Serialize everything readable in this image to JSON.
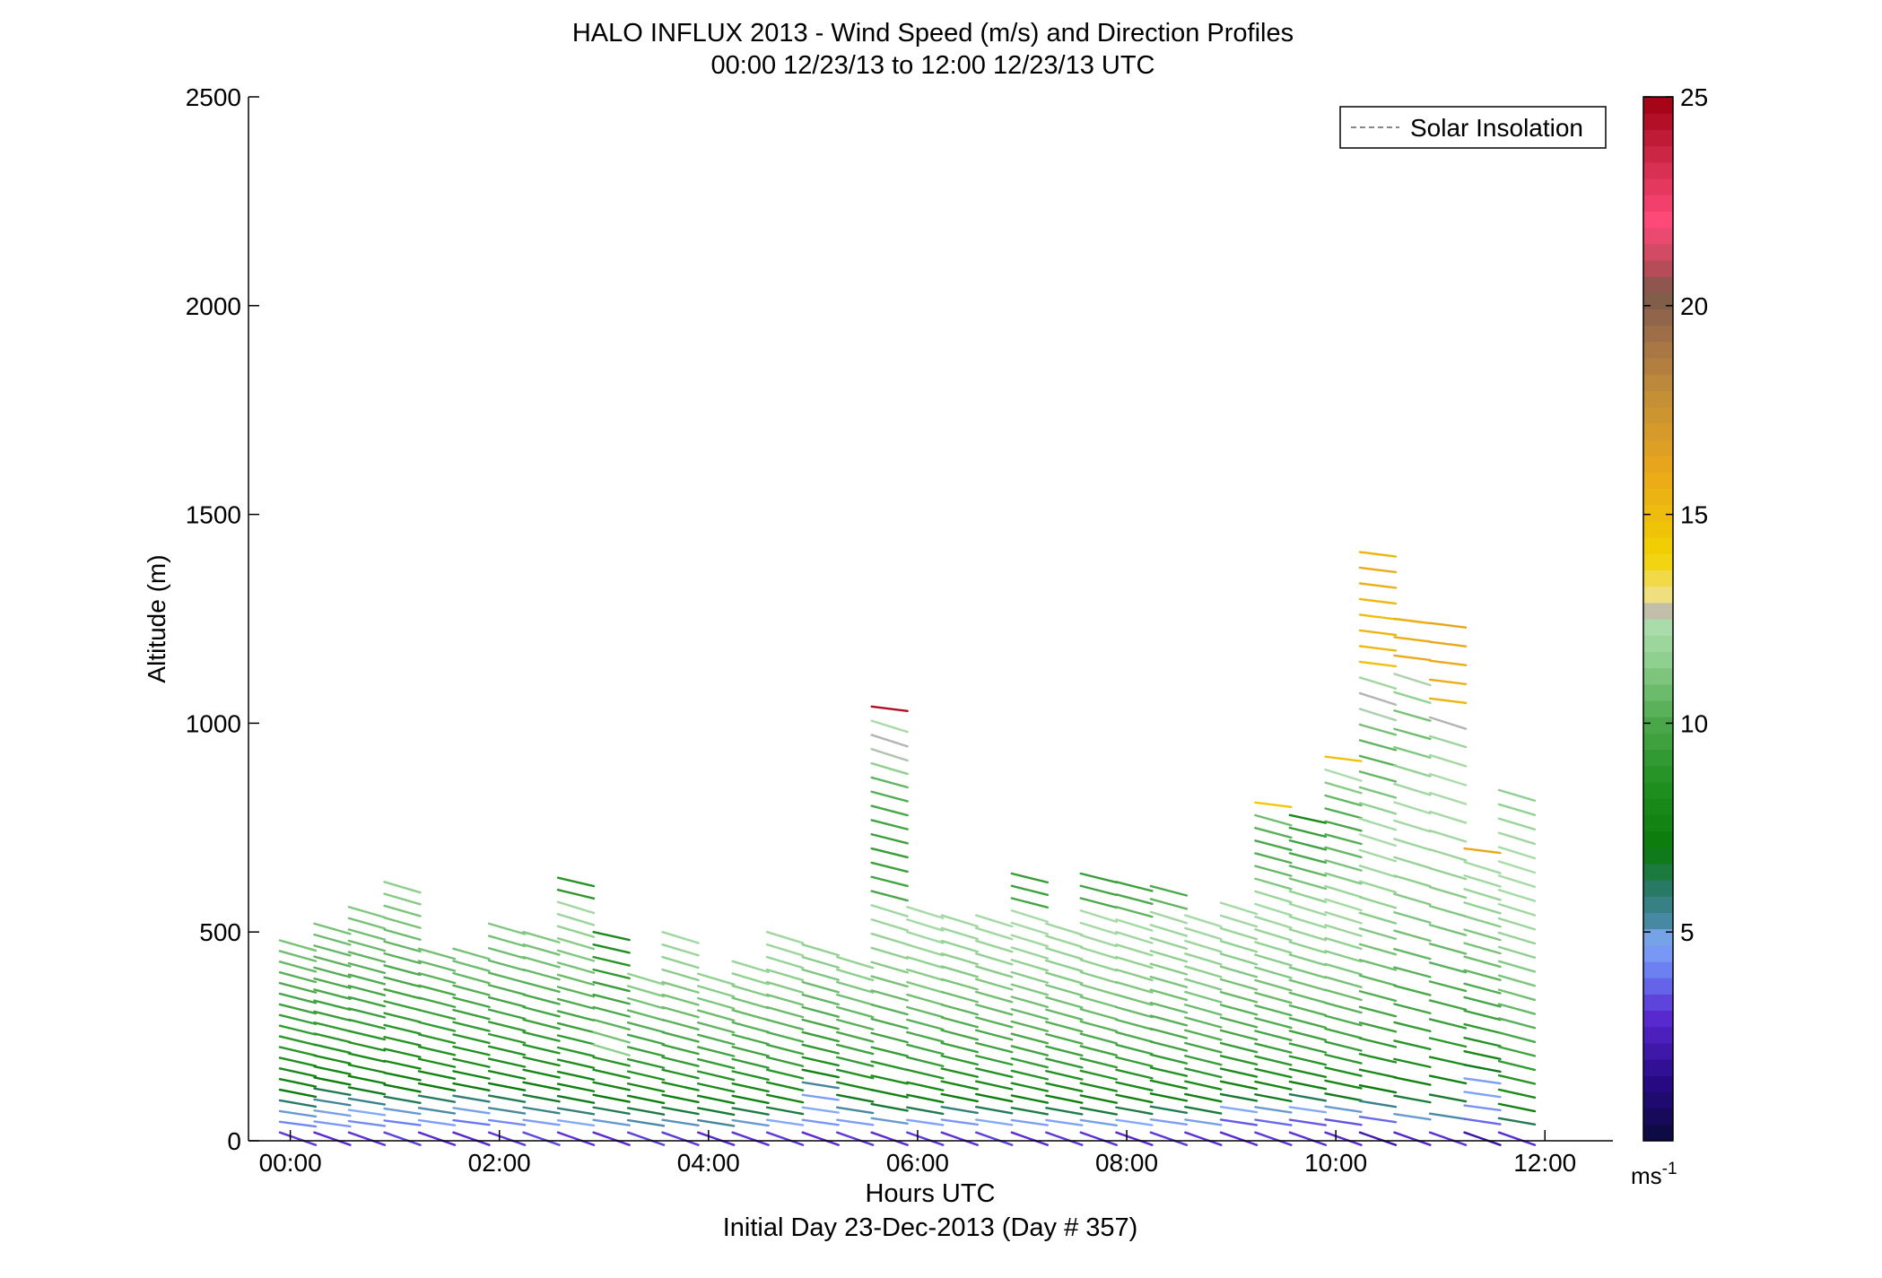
{
  "chart_data": {
    "type": "wind-barb-profile",
    "title": "HALO INFLUX 2013 - Wind Speed (m/s) and Direction Profiles",
    "subtitle": "00:00 12/23/13 to 12:00 12/23/13  UTC",
    "xlabel": "Hours UTC",
    "xlabel2": "Initial Day 23-Dec-2013 (Day # 357)",
    "ylabel": "Altitude (m)",
    "xlim": [
      -0.4,
      12.65
    ],
    "ylim": [
      0,
      2500
    ],
    "x_ticks": [
      {
        "value": 0,
        "label": "00:00"
      },
      {
        "value": 2,
        "label": "02:00"
      },
      {
        "value": 4,
        "label": "04:00"
      },
      {
        "value": 6,
        "label": "06:00"
      },
      {
        "value": 8,
        "label": "08:00"
      },
      {
        "value": 10,
        "label": "10:00"
      },
      {
        "value": 12,
        "label": "12:00"
      }
    ],
    "y_ticks": [
      {
        "value": 0,
        "label": "0"
      },
      {
        "value": 500,
        "label": "500"
      },
      {
        "value": 1000,
        "label": "1000"
      },
      {
        "value": 1500,
        "label": "1500"
      },
      {
        "value": 2000,
        "label": "2000"
      },
      {
        "value": 2500,
        "label": "2500"
      }
    ],
    "legend": {
      "label": "Solar Insolation",
      "style": "dashed",
      "color": "#888888",
      "placement": "top-right"
    },
    "colorbar": {
      "min": 0,
      "max": 25,
      "ticks": [
        {
          "value": 5,
          "label": "5"
        },
        {
          "value": 10,
          "label": "10"
        },
        {
          "value": 15,
          "label": "15"
        },
        {
          "value": 20,
          "label": "20"
        },
        {
          "value": 25,
          "label": "25"
        }
      ],
      "unit_base": "ms",
      "unit_exp": "-1",
      "stops": [
        {
          "v": 0,
          "c": "#0a0a3c"
        },
        {
          "v": 1.5,
          "c": "#2a0a8a"
        },
        {
          "v": 3,
          "c": "#5a2ad2"
        },
        {
          "v": 4,
          "c": "#6a7af0"
        },
        {
          "v": 4.8,
          "c": "#82aaf8"
        },
        {
          "v": 5.2,
          "c": "#4a8aa8"
        },
        {
          "v": 6,
          "c": "#2a7a6a"
        },
        {
          "v": 7,
          "c": "#0a7a0a"
        },
        {
          "v": 8.5,
          "c": "#1f8f1f"
        },
        {
          "v": 10,
          "c": "#4aa84a"
        },
        {
          "v": 11.5,
          "c": "#8ecf8e"
        },
        {
          "v": 12.3,
          "c": "#aadcaa"
        },
        {
          "v": 12.6,
          "c": "#b4b4b4"
        },
        {
          "v": 13,
          "c": "#f0e08a"
        },
        {
          "v": 14,
          "c": "#f2d200"
        },
        {
          "v": 16,
          "c": "#eaa81a"
        },
        {
          "v": 18,
          "c": "#c08c3a"
        },
        {
          "v": 19.5,
          "c": "#9a6a4a"
        },
        {
          "v": 20.3,
          "c": "#7a5a4a"
        },
        {
          "v": 21,
          "c": "#c04a5a"
        },
        {
          "v": 22,
          "c": "#ff4a7a"
        },
        {
          "v": 23.5,
          "c": "#d02a4a"
        },
        {
          "v": 25,
          "c": "#a00010"
        }
      ]
    },
    "profile_times": [
      -0.1,
      0.23,
      0.56,
      0.9,
      1.23,
      1.56,
      1.9,
      2.23,
      2.56,
      2.9,
      3.23,
      3.56,
      3.9,
      4.23,
      4.56,
      4.9,
      5.23,
      5.56,
      5.9,
      6.23,
      6.56,
      6.9,
      7.23,
      7.56,
      7.9,
      8.23,
      8.56,
      8.9,
      9.23,
      9.56,
      9.9,
      10.23,
      10.56,
      10.9,
      11.23,
      11.56
    ],
    "profiles": [
      {
        "t": -0.1,
        "top": 480,
        "spd": [
          3.2,
          4.2,
          5,
          6,
          7,
          7.6,
          8.1,
          8.5,
          8.8,
          9,
          9.2,
          9.4,
          9.6,
          9.8,
          10,
          10.3,
          10.6,
          10.8,
          11
        ]
      },
      {
        "t": 0.23,
        "top": 520,
        "spd": [
          3,
          4.5,
          4.9,
          5.4,
          6.3,
          7.2,
          7.8,
          8.2,
          8.6,
          9,
          9.2,
          9.4,
          9.6,
          9.9,
          10,
          10.2,
          10.4,
          10.6,
          10.8,
          11
        ]
      },
      {
        "t": 0.56,
        "top": 560,
        "spd": [
          3.1,
          4.3,
          4.8,
          5.6,
          6.8,
          7.4,
          7.9,
          8.3,
          8.6,
          8.9,
          9.2,
          9.4,
          9.7,
          9.9,
          10.1,
          10.3,
          10.5,
          10.7,
          10.9,
          11,
          11.2
        ]
      },
      {
        "t": 0.9,
        "top": 620,
        "spd": [
          3.3,
          4.1,
          5,
          6.2,
          7,
          7.5,
          8,
          8.4,
          8.7,
          9,
          9.3,
          9.5,
          9.7,
          9.9,
          10.1,
          10.4,
          10.6,
          10.8,
          11,
          11.1,
          11.3,
          11.5
        ]
      },
      {
        "t": 1.23,
        "top": 460,
        "spd": [
          3,
          4.6,
          5.2,
          6.1,
          7.1,
          7.7,
          8.2,
          8.6,
          9,
          9.2,
          9.5,
          9.8,
          10,
          10.4,
          10.6,
          10.9
        ]
      },
      {
        "t": 1.56,
        "top": 460,
        "spd": [
          2.9,
          4,
          4.9,
          5.8,
          6.9,
          7.6,
          8.2,
          8.5,
          8.9,
          9.2,
          9.5,
          9.8,
          10.2,
          10.6,
          10.8,
          11
        ]
      },
      {
        "t": 1.9,
        "top": 520,
        "spd": [
          3.2,
          4.3,
          5.3,
          6.2,
          7,
          7.8,
          8.3,
          8.7,
          9,
          9.3,
          9.6,
          9.8,
          10.1,
          10.4,
          10.6,
          10.8,
          11,
          11.2
        ]
      },
      {
        "t": 2.23,
        "top": 500,
        "spd": [
          3.4,
          4.6,
          5.6,
          6.6,
          7.2,
          7.9,
          8.4,
          8.8,
          9.2,
          9.5,
          9.8,
          10,
          10.3,
          10.6,
          10.9,
          11,
          11.2
        ]
      },
      {
        "t": 2.56,
        "top": 630,
        "spd": [
          3.1,
          4.8,
          5.8,
          6.8,
          7.4,
          8,
          8.5,
          8.9,
          9.2,
          9.5,
          9.8,
          10.1,
          10.4,
          10.7,
          11,
          11.2,
          11.4,
          11.6,
          11.8,
          12,
          9,
          8.8
        ]
      },
      {
        "t": 2.9,
        "top": 500,
        "spd": [
          3,
          5,
          6.2,
          7,
          7.8,
          8.4,
          8.8,
          11.5,
          11,
          10.4,
          10,
          9.7,
          9.4,
          9.1,
          8.8,
          8.5,
          8.2
        ]
      },
      {
        "t": 3.23,
        "top": 400,
        "spd": [
          3.3,
          5.2,
          6.4,
          7.3,
          8,
          8.6,
          9,
          9.4,
          9.8,
          10.2,
          10.6,
          11,
          11.3,
          11.6
        ]
      },
      {
        "t": 3.56,
        "top": 500,
        "spd": [
          3.2,
          5.1,
          6.5,
          7.4,
          8.1,
          8.7,
          9.2,
          9.6,
          10,
          10.4,
          10.7,
          11,
          11.2,
          11.4,
          11.6,
          11.8,
          12
        ]
      },
      {
        "t": 3.9,
        "top": 400,
        "spd": [
          3,
          5.4,
          6.6,
          7.5,
          8.2,
          8.8,
          9.3,
          9.7,
          10.1,
          10.5,
          10.8,
          11.1,
          11.4,
          11.6
        ]
      },
      {
        "t": 4.23,
        "top": 430,
        "spd": [
          3.1,
          5,
          6.4,
          7.4,
          8.1,
          8.7,
          9.2,
          9.6,
          10,
          10.4,
          10.7,
          11,
          11.3,
          11.6,
          11.8
        ]
      },
      {
        "t": 4.56,
        "top": 500,
        "spd": [
          3.2,
          4.8,
          6.5,
          7.6,
          8.3,
          8.9,
          9.3,
          9.7,
          10.1,
          10.4,
          10.7,
          11,
          11.3,
          11.5,
          11.7,
          11.9,
          12
        ]
      },
      {
        "t": 4.9,
        "top": 470,
        "spd": [
          3,
          4.5,
          4.8,
          4.6,
          5.4,
          7.5,
          8.4,
          9,
          9.4,
          9.8,
          10.2,
          10.5,
          10.8,
          11.1,
          11.4,
          11.6
        ]
      },
      {
        "t": 5.23,
        "top": 440,
        "spd": [
          3.2,
          4.6,
          5.3,
          6.8,
          8,
          8.7,
          9.2,
          9.6,
          10,
          10.3,
          10.6,
          10.9,
          11.2,
          11.5,
          11.7
        ]
      },
      {
        "t": 5.56,
        "top": 1040,
        "spd": [
          3,
          5,
          6.6,
          7.6,
          8.3,
          8.9,
          9.3,
          9.7,
          10.1,
          10.4,
          10.7,
          11,
          11.3,
          11.5,
          11.7,
          11.9,
          12,
          10,
          9.7,
          9.5,
          9.3,
          9.5,
          9.7,
          10,
          10.2,
          10.5,
          11.5,
          12.5,
          12.6,
          12.2,
          24.5
        ]
      },
      {
        "t": 5.9,
        "top": 560,
        "spd": [
          3.2,
          4.7,
          6.3,
          7.4,
          8.2,
          8.8,
          9.3,
          9.7,
          10,
          10.3,
          10.6,
          10.9,
          11.2,
          11.4,
          11.6,
          11.8,
          12,
          12.1,
          12.2
        ]
      },
      {
        "t": 6.23,
        "top": 540,
        "spd": [
          3.1,
          4.5,
          5.8,
          7.2,
          8,
          8.6,
          9.1,
          9.5,
          9.9,
          10.2,
          10.5,
          10.8,
          11.1,
          11.3,
          11.5,
          11.7,
          11.9,
          12
        ]
      },
      {
        "t": 6.56,
        "top": 540,
        "spd": [
          3.3,
          4.8,
          6.2,
          7.3,
          8.1,
          8.7,
          9.2,
          9.6,
          10,
          10.3,
          10.6,
          10.9,
          11.2,
          11.4,
          11.6,
          11.8,
          12,
          12.1
        ]
      },
      {
        "t": 6.9,
        "top": 640,
        "spd": [
          3,
          4.6,
          6.4,
          7.4,
          8.2,
          8.8,
          9.3,
          9.7,
          10,
          10.3,
          10.6,
          10.9,
          11.2,
          11.4,
          11.6,
          11.8,
          12,
          12.1,
          12.2,
          9.8,
          9.5,
          9.3
        ]
      },
      {
        "t": 7.23,
        "top": 520,
        "spd": [
          3.2,
          4.7,
          6.3,
          7.3,
          8.1,
          8.7,
          9.2,
          9.6,
          10,
          10.3,
          10.6,
          10.9,
          11.1,
          11.3,
          11.5,
          11.7,
          11.9,
          12
        ]
      },
      {
        "t": 7.56,
        "top": 640,
        "spd": [
          3.1,
          4.9,
          6.5,
          7.5,
          8.2,
          8.8,
          9.3,
          9.7,
          10.1,
          10.4,
          10.7,
          11,
          11.2,
          11.4,
          11.6,
          11.8,
          12,
          12.1,
          12.2,
          10,
          9.7,
          9.4
        ]
      },
      {
        "t": 7.9,
        "top": 620,
        "spd": [
          3,
          4.8,
          6.4,
          7.5,
          8.2,
          8.8,
          9.3,
          9.7,
          10.1,
          10.4,
          10.7,
          11,
          11.2,
          11.4,
          11.6,
          11.8,
          12,
          12.1,
          10.5,
          10,
          9.6
        ]
      },
      {
        "t": 8.23,
        "top": 610,
        "spd": [
          3.2,
          4.6,
          6.2,
          7.3,
          8.1,
          8.7,
          9.2,
          9.6,
          10,
          10.3,
          10.6,
          10.9,
          11.1,
          11.3,
          11.5,
          11.7,
          11.9,
          12,
          10.5,
          10
        ]
      },
      {
        "t": 8.56,
        "top": 540,
        "spd": [
          3.1,
          4.9,
          6.5,
          7.5,
          8.3,
          8.9,
          9.4,
          9.8,
          10.2,
          10.5,
          10.8,
          11.1,
          11.3,
          11.5,
          11.7,
          11.9,
          12,
          12.2
        ]
      },
      {
        "t": 8.9,
        "top": 570,
        "spd": [
          3,
          3.6,
          4.8,
          6.6,
          7.6,
          8.3,
          8.9,
          9.4,
          9.8,
          10.1,
          10.4,
          10.7,
          11,
          11.2,
          11.4,
          11.6,
          11.8,
          12,
          12.1
        ]
      },
      {
        "t": 9.23,
        "top": 810,
        "spd": [
          3.2,
          3.8,
          5,
          6.8,
          7.8,
          8.5,
          9,
          9.4,
          9.8,
          10.1,
          10.4,
          10.7,
          11,
          11.2,
          11.4,
          11.6,
          11.8,
          12,
          12.1,
          11.8,
          11.2,
          10.6,
          10.2,
          10,
          10.3,
          10.8,
          14.5
        ]
      },
      {
        "t": 9.56,
        "top": 780,
        "spd": [
          3.1,
          3.6,
          4.8,
          6.2,
          7.4,
          8.2,
          8.8,
          9.3,
          9.7,
          10,
          10.3,
          10.6,
          10.9,
          11.1,
          11.3,
          11.5,
          11.7,
          11.9,
          12,
          11.6,
          11,
          10.5,
          10,
          9.6,
          9.3,
          8
        ]
      },
      {
        "t": 9.9,
        "top": 920,
        "spd": [
          3,
          3.5,
          5,
          6.8,
          7.8,
          8.5,
          9,
          9.4,
          9.8,
          10.1,
          10.4,
          10.7,
          11,
          11.2,
          11.4,
          11.6,
          11.8,
          12,
          12.1,
          11.8,
          11.4,
          11,
          10.6,
          10.2,
          9.9,
          10.2,
          10.6,
          11.4,
          12.3,
          14.8
        ]
      },
      {
        "t": 10.23,
        "top": 1410,
        "spd": [
          2.2,
          3.8,
          5.6,
          7,
          7.9,
          8.6,
          9.1,
          9.5,
          9.9,
          10.2,
          10.5,
          10.8,
          11,
          11.2,
          11.4,
          11.6,
          11.8,
          12,
          12.1,
          12.3,
          12.1,
          11.6,
          11.1,
          10.6,
          10.3,
          10.5,
          11,
          12.4,
          12.6,
          12,
          14.8,
          15.2,
          15.4,
          15,
          15.2,
          15.6,
          15.8,
          15.4
        ]
      },
      {
        "t": 10.56,
        "top": 1250,
        "spd": [
          2.8,
          5,
          6.5,
          7.5,
          8.2,
          8.8,
          9.3,
          9.7,
          10,
          10.3,
          10.6,
          10.9,
          11.1,
          11.3,
          11.5,
          11.7,
          11.9,
          12,
          12.2,
          12,
          11.6,
          11.2,
          10.8,
          11,
          11.6,
          12.4,
          16,
          15.8,
          15.6
        ]
      },
      {
        "t": 10.9,
        "top": 1240,
        "spd": [
          3.1,
          5.2,
          6.6,
          7.6,
          8.3,
          8.9,
          9.4,
          9.8,
          10.1,
          10.4,
          10.7,
          11,
          11.2,
          11.4,
          11.6,
          11.8,
          12,
          12.1,
          12.2,
          12.3,
          12.1,
          11.8,
          12.6,
          15.5,
          15.8,
          15.9,
          16.1,
          16.2
        ]
      },
      {
        "t": 11.23,
        "top": 700,
        "spd": [
          2,
          3.8,
          4.4,
          4.7,
          4.6,
          6.8,
          7.9,
          8.6,
          9.1,
          9.5,
          9.9,
          10.2,
          10.5,
          10.8,
          11,
          11.2,
          11.4,
          11.6,
          11.8,
          12,
          12.1,
          16
        ]
      },
      {
        "t": 11.56,
        "top": 840,
        "spd": [
          3,
          6.2,
          7.4,
          8.2,
          8.8,
          9.2,
          9.6,
          10,
          10.3,
          10.6,
          10.9,
          11.1,
          11.3,
          11.5,
          11.7,
          11.9,
          12,
          12.1,
          12.2,
          12.3,
          12.2,
          12,
          11.8,
          11.6,
          11.5
        ]
      }
    ]
  }
}
